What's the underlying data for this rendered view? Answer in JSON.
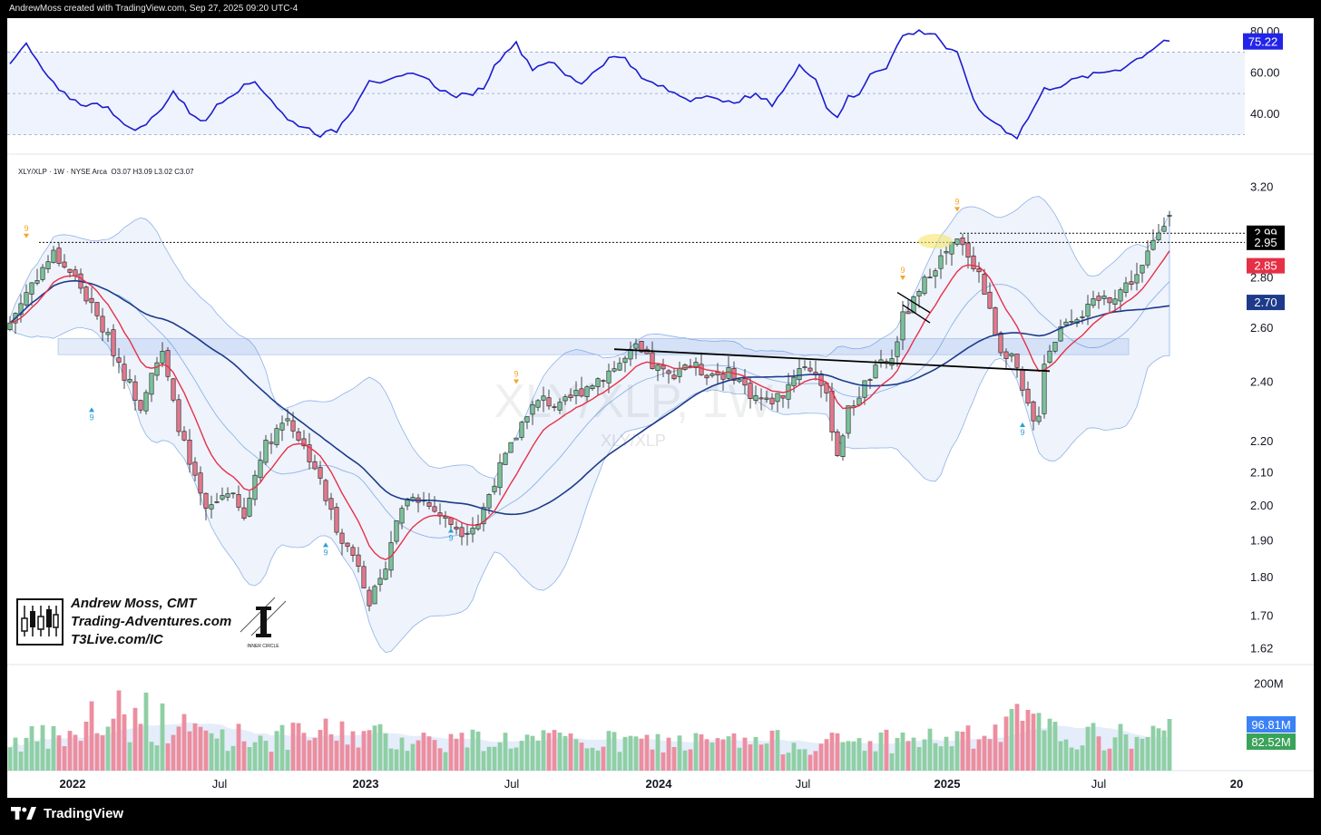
{
  "credit_text": "AndrewMoss created with TradingView.com, Sep 27, 2025 09:20 UTC-4",
  "footer": {
    "brand": "TradingView"
  },
  "legend": {
    "symbol": "XLY/XLP · 1W · NYSE Arca",
    "ohlc": "O3.07  H3.09  L3.02  C3.07"
  },
  "watermark": {
    "big": "XLY/XLP, 1W",
    "small": "XLY/XLP"
  },
  "branding": {
    "line1": "Andrew Moss, CMT",
    "line2": "Trading-Adventures.com",
    "line3": "T3Live.com/IC",
    "ic_caption": "INNER CIRCLE"
  },
  "colors": {
    "up": "#7ac29a",
    "down": "#e4788c",
    "rsi": "#1c1ccd",
    "ema": "#e63046",
    "sma": "#1d3b8a",
    "volume_up": "#8fcfa5",
    "volume_down": "#ec8ea0"
  },
  "chart_data": {
    "type": "candlestick",
    "symbol": "XLY/XLP",
    "timeframe": "1W",
    "x_tick_labels": [
      "2022",
      "Jul",
      "2023",
      "Jul",
      "2024",
      "Jul",
      "2025",
      "Jul",
      "20"
    ],
    "price_axis": {
      "ticks": [
        3.2,
        2.8,
        2.6,
        2.4,
        2.2,
        2.1,
        2.0,
        1.9,
        1.8,
        1.7,
        1.62
      ],
      "scale": "log",
      "range": [
        1.6,
        3.28
      ]
    },
    "rsi_axis": {
      "ticks": [
        80.0,
        60.0,
        40.0
      ],
      "range": [
        25,
        83
      ],
      "levels": [
        70,
        50,
        30
      ]
    },
    "volume_axis": {
      "ticks": [
        "200M"
      ],
      "max_millions": 230
    },
    "price_labels": [
      {
        "value": "2.99",
        "color": "#000000"
      },
      {
        "value": "2.95",
        "color": "#000000"
      },
      {
        "value": "2.85",
        "color": "#e63046"
      },
      {
        "value": "2.70",
        "color": "#1d3b8a"
      }
    ],
    "rsi_label": {
      "value": "75.22",
      "color": "#2424e8"
    },
    "volume_labels": [
      {
        "value": "96.81M",
        "color": "#3b82f6"
      },
      {
        "value": "82.52M",
        "color": "#3aa35a"
      }
    ],
    "close_anchors": [
      [
        0,
        2.62
      ],
      [
        4,
        2.78
      ],
      [
        8,
        2.9
      ],
      [
        12,
        2.8
      ],
      [
        15,
        2.68
      ],
      [
        18,
        2.56
      ],
      [
        21,
        2.43
      ],
      [
        24,
        2.32
      ],
      [
        26,
        2.45
      ],
      [
        28,
        2.5
      ],
      [
        30,
        2.32
      ],
      [
        33,
        2.12
      ],
      [
        36,
        1.98
      ],
      [
        40,
        2.05
      ],
      [
        43,
        1.96
      ],
      [
        46,
        2.16
      ],
      [
        49,
        2.24
      ],
      [
        51,
        2.28
      ],
      [
        54,
        2.18
      ],
      [
        56,
        2.12
      ],
      [
        58,
        2.02
      ],
      [
        60,
        1.94
      ],
      [
        62,
        1.88
      ],
      [
        64,
        1.84
      ],
      [
        66,
        1.74
      ],
      [
        68,
        1.78
      ],
      [
        70,
        1.9
      ],
      [
        72,
        2.0
      ],
      [
        74,
        2.04
      ],
      [
        77,
        2.0
      ],
      [
        80,
        1.96
      ],
      [
        83,
        1.93
      ],
      [
        86,
        1.95
      ],
      [
        89,
        2.08
      ],
      [
        92,
        2.18
      ],
      [
        95,
        2.3
      ],
      [
        98,
        2.34
      ],
      [
        101,
        2.31
      ],
      [
        104,
        2.36
      ],
      [
        107,
        2.4
      ],
      [
        110,
        2.44
      ],
      [
        113,
        2.48
      ],
      [
        115,
        2.52
      ],
      [
        118,
        2.46
      ],
      [
        121,
        2.42
      ],
      [
        124,
        2.47
      ],
      [
        127,
        2.44
      ],
      [
        130,
        2.43
      ],
      [
        133,
        2.43
      ],
      [
        136,
        2.36
      ],
      [
        139,
        2.33
      ],
      [
        142,
        2.36
      ],
      [
        145,
        2.46
      ],
      [
        148,
        2.44
      ],
      [
        150,
        2.34
      ],
      [
        152,
        2.16
      ],
      [
        154,
        2.3
      ],
      [
        156,
        2.36
      ],
      [
        158,
        2.42
      ],
      [
        160,
        2.46
      ],
      [
        162,
        2.48
      ],
      [
        163,
        2.56
      ],
      [
        164,
        2.64
      ],
      [
        165,
        2.67
      ],
      [
        167,
        2.73
      ],
      [
        169,
        2.83
      ],
      [
        171,
        2.88
      ],
      [
        173,
        2.93
      ],
      [
        174,
        2.95
      ],
      [
        176,
        2.9
      ],
      [
        178,
        2.82
      ],
      [
        180,
        2.66
      ],
      [
        182,
        2.52
      ],
      [
        184,
        2.5
      ],
      [
        186,
        2.36
      ],
      [
        188,
        2.26
      ],
      [
        189,
        2.3
      ],
      [
        190,
        2.48
      ],
      [
        192,
        2.56
      ],
      [
        194,
        2.64
      ],
      [
        196,
        2.65
      ],
      [
        198,
        2.67
      ],
      [
        200,
        2.71
      ],
      [
        202,
        2.72
      ],
      [
        204,
        2.75
      ],
      [
        206,
        2.79
      ],
      [
        208,
        2.84
      ],
      [
        210,
        2.95
      ],
      [
        212,
        3.05
      ],
      [
        213,
        3.07
      ]
    ],
    "volume_anchors": [
      [
        0,
        70
      ],
      [
        10,
        75
      ],
      [
        20,
        115
      ],
      [
        30,
        100
      ],
      [
        40,
        80
      ],
      [
        50,
        75
      ],
      [
        60,
        90
      ],
      [
        70,
        75
      ],
      [
        80,
        70
      ],
      [
        90,
        72
      ],
      [
        100,
        68
      ],
      [
        110,
        65
      ],
      [
        120,
        66
      ],
      [
        130,
        64
      ],
      [
        140,
        66
      ],
      [
        150,
        63
      ],
      [
        160,
        70
      ],
      [
        170,
        72
      ],
      [
        180,
        75
      ],
      [
        186,
        120
      ],
      [
        190,
        90
      ],
      [
        200,
        75
      ],
      [
        213,
        83
      ]
    ],
    "rsi_anchors": [
      [
        0,
        64
      ],
      [
        3,
        74
      ],
      [
        5,
        65
      ],
      [
        9,
        51
      ],
      [
        13,
        45
      ],
      [
        18,
        44
      ],
      [
        21,
        34
      ],
      [
        24,
        33
      ],
      [
        27,
        40
      ],
      [
        30,
        51
      ],
      [
        33,
        41
      ],
      [
        36,
        36
      ],
      [
        38,
        45
      ],
      [
        42,
        52
      ],
      [
        45,
        56
      ],
      [
        48,
        47
      ],
      [
        51,
        37
      ],
      [
        54,
        34
      ],
      [
        57,
        30
      ],
      [
        60,
        32
      ],
      [
        63,
        43
      ],
      [
        66,
        57
      ],
      [
        69,
        55
      ],
      [
        72,
        58
      ],
      [
        75,
        60
      ],
      [
        78,
        54
      ],
      [
        81,
        49
      ],
      [
        84,
        49
      ],
      [
        87,
        53
      ],
      [
        89,
        63
      ],
      [
        91,
        71
      ],
      [
        93,
        74
      ],
      [
        96,
        62
      ],
      [
        99,
        66
      ],
      [
        102,
        59
      ],
      [
        105,
        55
      ],
      [
        107,
        60
      ],
      [
        110,
        67
      ],
      [
        113,
        68
      ],
      [
        116,
        57
      ],
      [
        119,
        54
      ],
      [
        122,
        50
      ],
      [
        125,
        47
      ],
      [
        128,
        50
      ],
      [
        131,
        45
      ],
      [
        134,
        47
      ],
      [
        137,
        49
      ],
      [
        140,
        45
      ],
      [
        143,
        55
      ],
      [
        145,
        63
      ],
      [
        148,
        58
      ],
      [
        150,
        43
      ],
      [
        152,
        39
      ],
      [
        154,
        48
      ],
      [
        156,
        49
      ],
      [
        158,
        60
      ],
      [
        161,
        63
      ],
      [
        164,
        78
      ],
      [
        167,
        80
      ],
      [
        170,
        79
      ],
      [
        172,
        72
      ],
      [
        174,
        69
      ],
      [
        176,
        55
      ],
      [
        178,
        41
      ],
      [
        181,
        36
      ],
      [
        183,
        32
      ],
      [
        185,
        29
      ],
      [
        187,
        38
      ],
      [
        190,
        52
      ],
      [
        193,
        54
      ],
      [
        196,
        57
      ],
      [
        199,
        59
      ],
      [
        202,
        61
      ],
      [
        204,
        62
      ],
      [
        206,
        65
      ],
      [
        209,
        70
      ],
      [
        212,
        76
      ],
      [
        213,
        75.22
      ]
    ],
    "annotations": {
      "resistance_level_1": 2.95,
      "resistance_level_2": 2.99,
      "trendline": [
        [
          111,
          2.52
        ],
        [
          191,
          2.44
        ]
      ],
      "td_markers": [
        "9",
        "9",
        "9",
        "9",
        "9",
        "9",
        "9",
        "9"
      ]
    }
  }
}
